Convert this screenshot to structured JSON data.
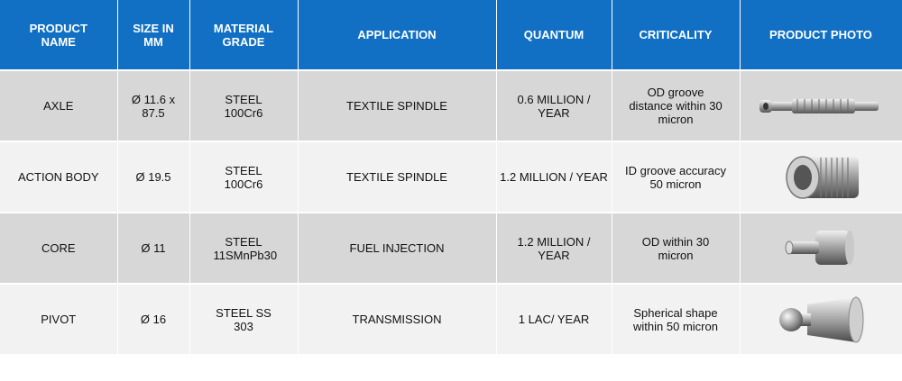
{
  "colors": {
    "header_bg": "#1170c4",
    "row_dark": "#d7d7d7",
    "row_light": "#f2f2f2"
  },
  "headers": {
    "name": "PRODUCT NAME",
    "size": "SIZE IN MM",
    "grade": "MATERIAL GRADE",
    "application": "APPLICATION",
    "quantum": "QUANTUM",
    "criticality": "CRITICALITY",
    "photo": "PRODUCT PHOTO"
  },
  "rows": [
    {
      "name": "AXLE",
      "size": "Ø 11.6 x 87.5",
      "grade": "STEEL 100Cr6",
      "application": "TEXTILE SPINDLE",
      "quantum": "0.6 MILLION / YEAR",
      "criticality": "OD groove distance within 30 micron",
      "photo_icon": "axle-photo"
    },
    {
      "name": "ACTION BODY",
      "size": "Ø 19.5",
      "grade": "STEEL 100Cr6",
      "application": "TEXTILE SPINDLE",
      "quantum": "1.2 MILLION / YEAR",
      "criticality": "ID groove accuracy 50 micron",
      "photo_icon": "action-body-photo"
    },
    {
      "name": "CORE",
      "size": "Ø 11",
      "grade": "STEEL 11SMnPb30",
      "application": "FUEL INJECTION",
      "quantum": "1.2 MILLION / YEAR",
      "criticality": "OD within 30 micron",
      "photo_icon": "core-photo"
    },
    {
      "name": "PIVOT",
      "size": "Ø 16",
      "grade": "STEEL SS 303",
      "application": "TRANSMISSION",
      "quantum": "1 LAC/ YEAR",
      "criticality": "Spherical shape within 50 micron",
      "photo_icon": "pivot-photo"
    }
  ]
}
